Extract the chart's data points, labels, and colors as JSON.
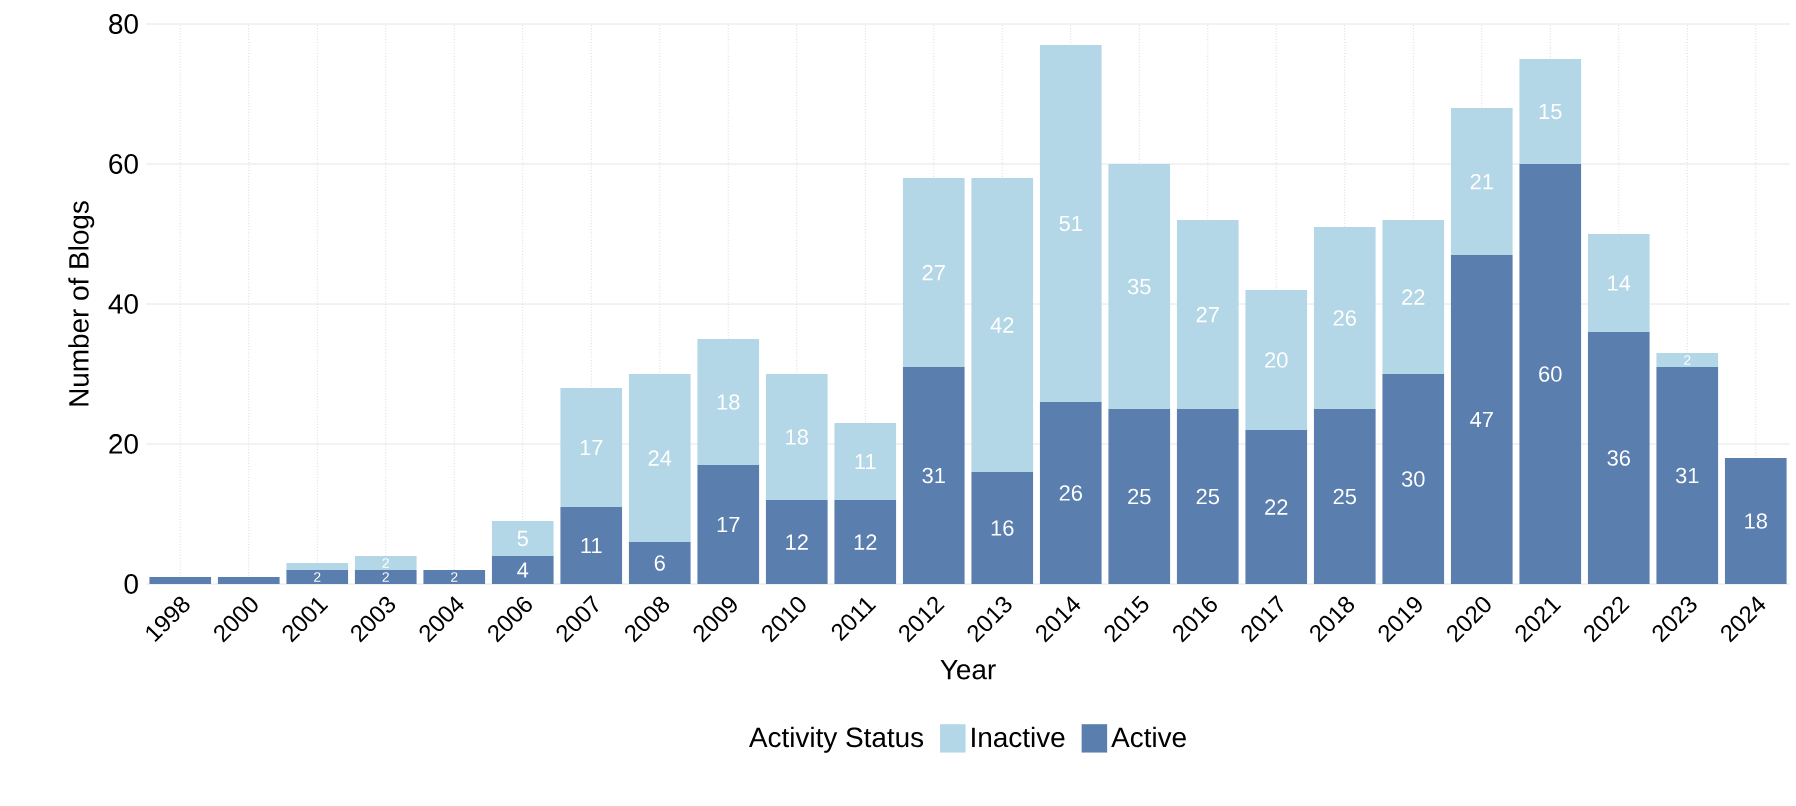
{
  "chart_data": {
    "type": "bar",
    "stacked": true,
    "xlabel": "Year",
    "ylabel": "Number of Blogs",
    "legend_title": "Activity Status",
    "legend": "bottom",
    "grid": true,
    "categories": [
      "1998",
      "2000",
      "2001",
      "2003",
      "2004",
      "2006",
      "2007",
      "2008",
      "2009",
      "2010",
      "2011",
      "2012",
      "2013",
      "2014",
      "2015",
      "2016",
      "2017",
      "2018",
      "2019",
      "2020",
      "2021",
      "2022",
      "2023",
      "2024"
    ],
    "ylim": [
      0,
      80
    ],
    "yticks": [
      0,
      20,
      40,
      60,
      80
    ],
    "series": [
      {
        "name": "Active",
        "color": "#5a7eae",
        "values": [
          1,
          1,
          2,
          2,
          2,
          4,
          11,
          6,
          17,
          12,
          12,
          31,
          16,
          26,
          25,
          25,
          22,
          25,
          30,
          47,
          60,
          36,
          31,
          18
        ],
        "value_labels": [
          null,
          null,
          "2",
          "2",
          "2",
          "4",
          "11",
          "6",
          "17",
          "12",
          "12",
          "31",
          "16",
          "26",
          "25",
          "25",
          "22",
          "25",
          "30",
          "47",
          "60",
          "36",
          "31",
          "18"
        ]
      },
      {
        "name": "Inactive",
        "color": "#b4d7e7",
        "values": [
          0,
          0,
          1,
          2,
          0,
          5,
          17,
          24,
          18,
          18,
          11,
          27,
          42,
          51,
          35,
          27,
          20,
          26,
          22,
          21,
          15,
          14,
          2,
          0
        ],
        "value_labels": [
          null,
          null,
          null,
          "2",
          null,
          "5",
          "17",
          "24",
          "18",
          "18",
          "11",
          "27",
          "42",
          "51",
          "35",
          "27",
          "20",
          "26",
          "22",
          "21",
          "15",
          "14",
          "2",
          null
        ]
      }
    ]
  }
}
